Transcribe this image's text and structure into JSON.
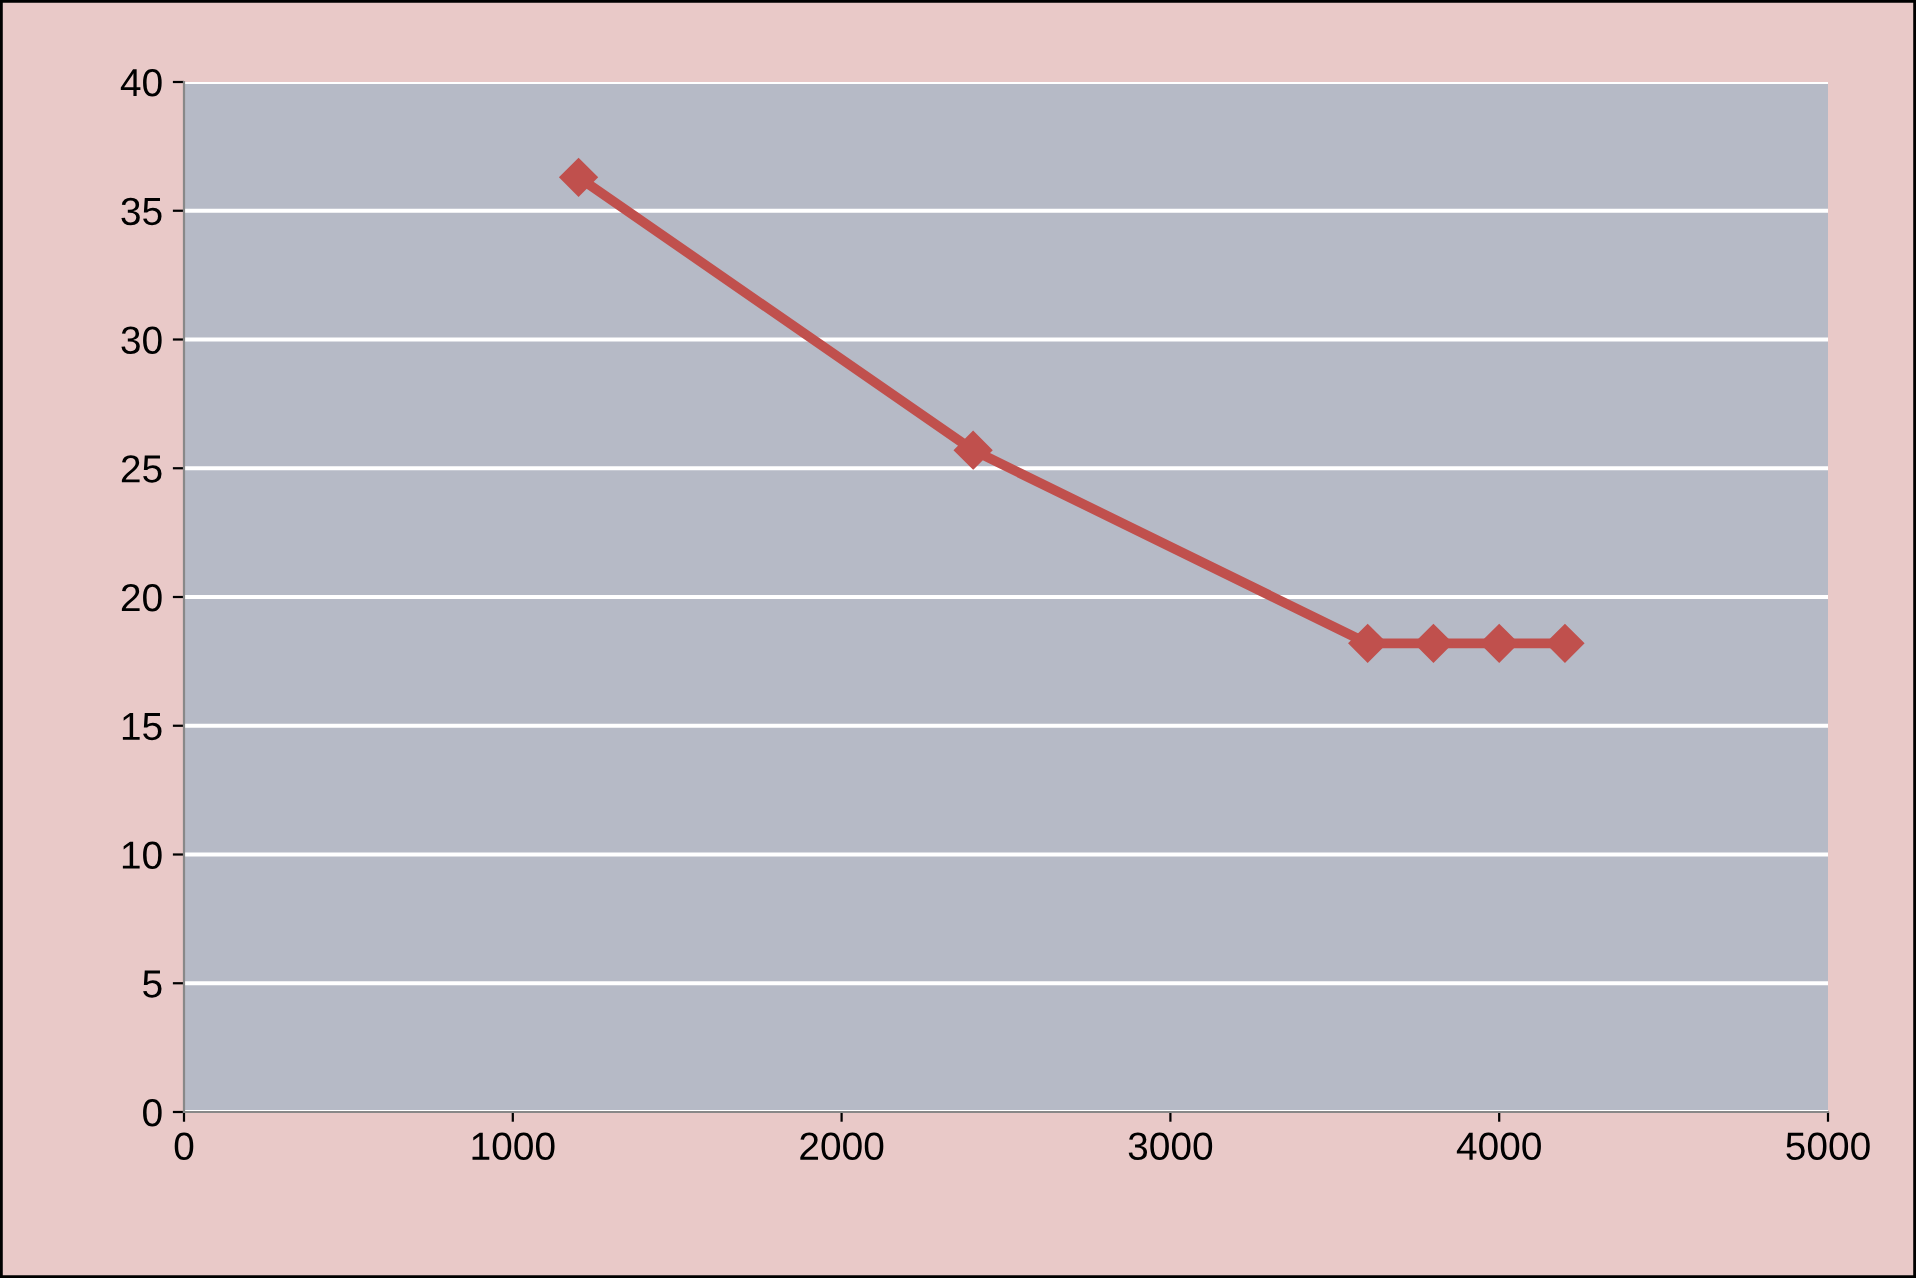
{
  "chart_data": {
    "type": "line",
    "x": [
      1200,
      2400,
      3600,
      3800,
      4000,
      4200
    ],
    "series": [
      {
        "color": "#c0504d",
        "values": [
          36.3,
          25.7,
          18.2,
          18.2,
          18.2,
          18.2
        ]
      }
    ],
    "xlim": [
      0,
      5000
    ],
    "xticks": [
      0,
      1000,
      2000,
      3000,
      4000,
      5000
    ],
    "ylim": [
      0,
      40
    ],
    "yticks": [
      0,
      5,
      10,
      15,
      20,
      25,
      30,
      35,
      40
    ],
    "grid": "y",
    "marker": "diamond",
    "line_style": "solid",
    "legend": false
  }
}
